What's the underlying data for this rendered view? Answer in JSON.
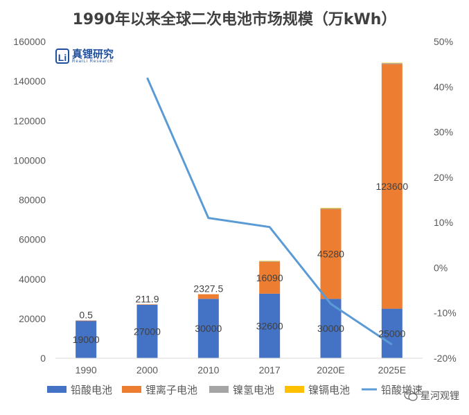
{
  "chart_data": {
    "type": "bar",
    "title": "1990年以来全球二次电池市场规模（万kWh）",
    "categories": [
      "1990",
      "2000",
      "2010",
      "2017",
      "2020E",
      "2025E"
    ],
    "series": [
      {
        "name": "铅酸电池",
        "kind": "bar",
        "color": "#4472c4",
        "values": [
          19000,
          27000,
          30000,
          32600,
          30000,
          25000
        ],
        "labels": [
          "19000",
          "27000",
          "30000",
          "32600",
          "30000",
          "25000"
        ]
      },
      {
        "name": "锂离子电池",
        "kind": "bar",
        "color": "#ed7d31",
        "values": [
          0.5,
          211.9,
          2327.5,
          16090,
          45280,
          123600
        ],
        "labels": [
          "0.5",
          "211.9",
          "2327.5",
          "16090",
          "45280",
          "123600"
        ]
      },
      {
        "name": "镍氢电池",
        "kind": "bar",
        "color": "#a5a5a5",
        "values": [
          0,
          0,
          0,
          300,
          400,
          500
        ],
        "labels": []
      },
      {
        "name": "镍镉电池",
        "kind": "bar",
        "color": "#ffc000",
        "values": [
          0,
          0,
          0,
          200,
          300,
          200
        ],
        "labels": []
      },
      {
        "name": "铅酸增速",
        "kind": "line",
        "axis": "right",
        "color": "#5b9bd5",
        "values": [
          null,
          42,
          11,
          9,
          -8,
          -17
        ]
      }
    ],
    "ylim": [
      0,
      160000
    ],
    "yticks": [
      "0",
      "20000",
      "40000",
      "60000",
      "80000",
      "100000",
      "120000",
      "140000",
      "160000"
    ],
    "y2lim": [
      -20,
      50
    ],
    "y2ticks": [
      "-20%",
      "-10%",
      "0%",
      "10%",
      "20%",
      "30%",
      "40%",
      "50%"
    ],
    "grid": false,
    "legend_position": "bottom"
  },
  "branding": {
    "logo_text": "真锂研究",
    "logo_subtext": "RealLi Research",
    "logo_mark": "Li",
    "watermark_text": "星河观锂"
  }
}
